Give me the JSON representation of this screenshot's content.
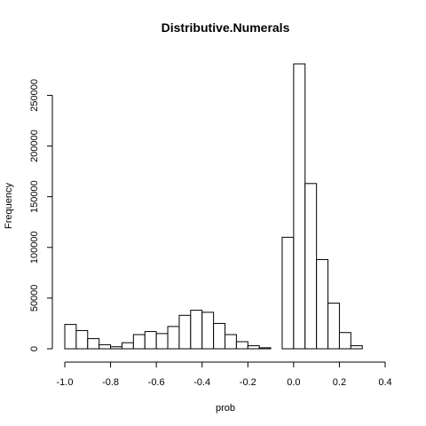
{
  "chart_data": {
    "type": "bar",
    "title": "Distributive.Numerals",
    "xlabel": "prob",
    "ylabel": "Frequency",
    "bin_width": 0.05,
    "bin_starts": [
      -1.0,
      -0.95,
      -0.9,
      -0.85,
      -0.8,
      -0.75,
      -0.7,
      -0.65,
      -0.6,
      -0.55,
      -0.5,
      -0.45,
      -0.4,
      -0.35,
      -0.3,
      -0.25,
      -0.2,
      -0.15,
      -0.1,
      -0.05,
      0.0,
      0.05,
      0.1,
      0.15,
      0.2,
      0.25,
      0.3,
      0.35
    ],
    "values": [
      24000,
      18000,
      10000,
      4000,
      2000,
      6000,
      14000,
      17000,
      15000,
      22000,
      33000,
      38000,
      36000,
      25000,
      14000,
      7000,
      3000,
      1000,
      0,
      110000,
      281000,
      163000,
      88000,
      45000,
      16000,
      3000,
      0,
      0
    ],
    "xlim": [
      -1.0,
      0.4
    ],
    "ylim": [
      0,
      281000
    ],
    "xticks": [
      -1.0,
      -0.8,
      -0.6,
      -0.4,
      -0.2,
      0.0,
      0.2,
      0.4
    ],
    "xtick_labels": [
      "-1.0",
      "-0.8",
      "-0.6",
      "-0.4",
      "-0.2",
      "0.0",
      "0.2",
      "0.4"
    ],
    "yticks": [
      0,
      50000,
      100000,
      150000,
      200000,
      250000
    ],
    "ytick_labels": [
      "0",
      "50000",
      "100000",
      "150000",
      "200000",
      "250000"
    ],
    "grid": false,
    "legend": "none"
  }
}
